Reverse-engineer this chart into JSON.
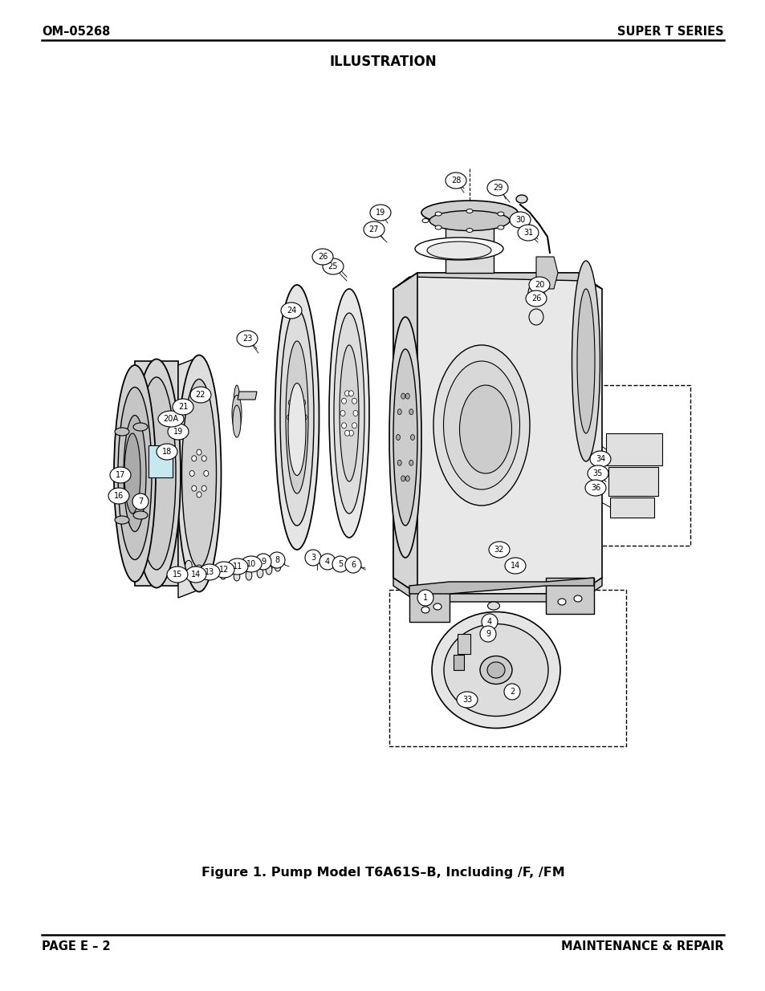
{
  "bg_color": "#ffffff",
  "text_color": "#000000",
  "header_left": "OM–05268",
  "header_right": "SUPER T SERIES",
  "title": "ILLUSTRATION",
  "figure_caption": "Figure 1. Pump Model T6A61S–B, Including /F, /FM",
  "footer_left": "PAGE E – 2",
  "footer_right": "MAINTENANCE & REPAIR",
  "header_font_size": 10.5,
  "title_font_size": 12,
  "caption_font_size": 11.5,
  "footer_font_size": 10.5
}
